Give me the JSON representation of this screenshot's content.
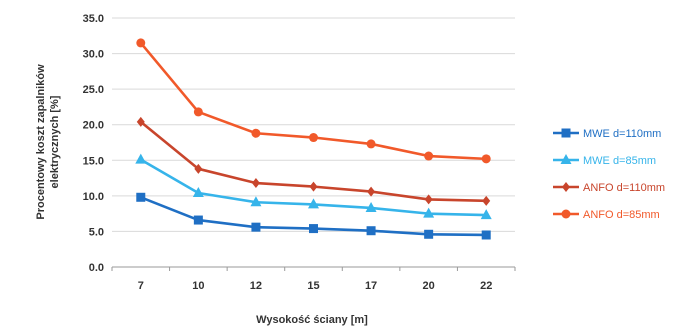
{
  "chart_data": {
    "type": "line",
    "title": "",
    "xlabel": "Wysokość ściany [m]",
    "ylabel_lines": [
      "Procentowy koszt zapalników",
      "elektrycznych [%]"
    ],
    "categories": [
      "7",
      "10",
      "12",
      "15",
      "17",
      "20",
      "22"
    ],
    "ylim": [
      0,
      35
    ],
    "yticks": [
      "0.0",
      "5.0",
      "10.0",
      "15.0",
      "20.0",
      "25.0",
      "30.0",
      "35.0"
    ],
    "grid": true,
    "legend_position": "right",
    "series": [
      {
        "name": "MWE d=110mm",
        "color": "#1f6fc4",
        "marker": "square",
        "values": [
          9.8,
          6.6,
          5.6,
          5.4,
          5.1,
          4.6,
          4.5
        ]
      },
      {
        "name": "MWE d=85mm",
        "color": "#36b4ea",
        "marker": "triangle",
        "values": [
          15.1,
          10.4,
          9.1,
          8.8,
          8.3,
          7.5,
          7.3
        ]
      },
      {
        "name": "ANFO d=110mm",
        "color": "#c8452c",
        "marker": "diamond",
        "values": [
          20.4,
          13.8,
          11.8,
          11.3,
          10.6,
          9.5,
          9.3
        ]
      },
      {
        "name": "ANFO d=85mm",
        "color": "#f1592a",
        "marker": "circle",
        "values": [
          31.5,
          21.8,
          18.8,
          18.2,
          17.3,
          15.6,
          15.2
        ]
      }
    ]
  }
}
